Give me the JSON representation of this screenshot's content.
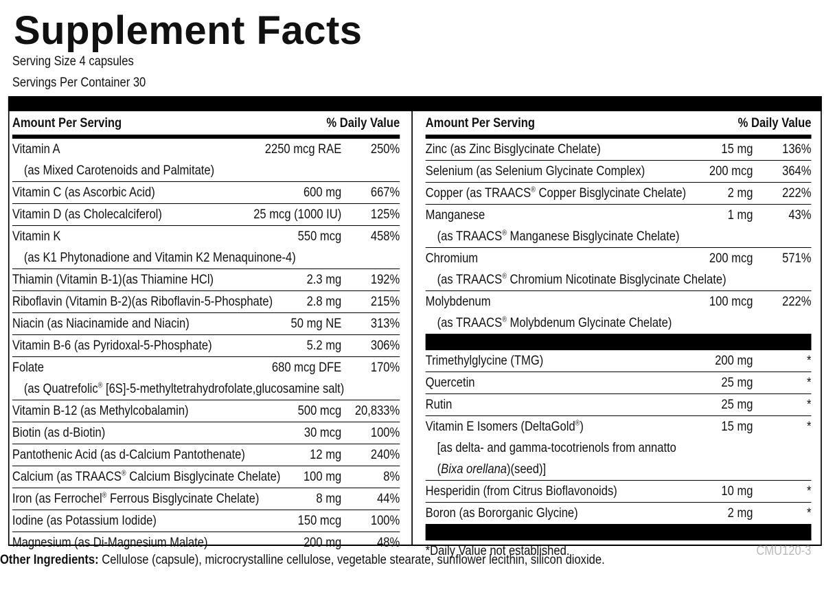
{
  "header": {
    "title": "Supplement Facts",
    "serving_size": "Serving Size 4 capsules",
    "servings_per_container": "Servings Per Container 30"
  },
  "left": {
    "columns": {
      "amount": "Amount Per Serving",
      "daily_value": "% Daily Value"
    },
    "rows": [
      {
        "name": "Vitamin A",
        "amount": "2250 mcg RAE",
        "daily_value": "250%",
        "detail": [
          "(as Mixed Carotenoids and Palmitate)"
        ]
      },
      {
        "name": "Vitamin C (as Ascorbic Acid)",
        "amount": "600 mg",
        "daily_value": "667%"
      },
      {
        "name": "Vitamin D (as Cholecalciferol)",
        "amount": "25 mcg (1000 IU)",
        "daily_value": "125%"
      },
      {
        "name": "Vitamin K",
        "amount": "550 mcg",
        "daily_value": "458%",
        "detail": [
          "(as K1 Phytonadione and Vitamin K2 Menaquinone-4)"
        ]
      },
      {
        "name": "Thiamin (Vitamin B-1)(as Thiamine HCl)",
        "amount": "2.3 mg",
        "daily_value": "192%"
      },
      {
        "name": "Riboflavin (Vitamin B-2)(as Riboflavin-5-Phosphate)",
        "amount": "2.8 mg",
        "daily_value": "215%"
      },
      {
        "name": "Niacin (as Niacinamide and Niacin)",
        "amount": "50 mg NE",
        "daily_value": "313%"
      },
      {
        "name": "Vitamin B-6 (as Pyridoxal-5-Phosphate)",
        "amount": "5.2 mg",
        "daily_value": "306%"
      },
      {
        "name": "Folate",
        "amount": "680 mcg DFE",
        "daily_value": "170%",
        "detail": [
          "(as Quatrefolic® [6S]-5-methyltetrahydrofolate,glucosamine salt)"
        ]
      },
      {
        "name": "Vitamin B-12 (as Methylcobalamin)",
        "amount": "500 mcg",
        "daily_value": "20,833%"
      },
      {
        "name": "Biotin (as d-Biotin)",
        "amount": "30 mcg",
        "daily_value": "100%"
      },
      {
        "name": "Pantothenic Acid (as d-Calcium Pantothenate)",
        "amount": "12 mg",
        "daily_value": "240%"
      },
      {
        "name": "Calcium (as TRAACS® Calcium Bisglycinate Chelate)",
        "amount": "100 mg",
        "daily_value": "8%"
      },
      {
        "name": "Iron (as Ferrochel® Ferrous Bisglycinate Chelate)",
        "amount": "8 mg",
        "daily_value": "44%"
      },
      {
        "name": "Iodine (as Potassium Iodide)",
        "amount": "150 mcg",
        "daily_value": "100%"
      },
      {
        "name": "Magnesium (as Di-Magnesium Malate)",
        "amount": "200 mg",
        "daily_value": "48%"
      }
    ]
  },
  "right": {
    "columns": {
      "amount": "Amount Per Serving",
      "daily_value": "% Daily Value"
    },
    "rows": [
      {
        "name": "Zinc (as Zinc Bisglycinate Chelate)",
        "amount": "15 mg",
        "daily_value": "136%"
      },
      {
        "name": "Selenium (as Selenium Glycinate Complex)",
        "amount": "200 mcg",
        "daily_value": "364%"
      },
      {
        "name": "Copper (as TRAACS® Copper Bisglycinate Chelate)",
        "amount": "2 mg",
        "daily_value": "222%"
      },
      {
        "name": "Manganese",
        "amount": "1 mg",
        "daily_value": "43%",
        "detail": [
          "(as TRAACS® Manganese Bisglycinate Chelate)"
        ]
      },
      {
        "name": "Chromium",
        "amount": "200 mcg",
        "daily_value": "571%",
        "detail": [
          "(as TRAACS® Chromium Nicotinate Bisglycinate Chelate)"
        ]
      },
      {
        "name": "Molybdenum",
        "amount": "100 mcg",
        "daily_value": "222%",
        "detail": [
          "(as TRAACS® Molybdenum Glycinate Chelate)"
        ]
      }
    ],
    "other_rows": [
      {
        "name": "Trimethylglycine (TMG)",
        "amount": "200 mg",
        "daily_value": "*"
      },
      {
        "name": "Quercetin",
        "amount": "25 mg",
        "daily_value": "*"
      },
      {
        "name": "Rutin",
        "amount": "25 mg",
        "daily_value": "*"
      },
      {
        "name": "Vitamin E Isomers (DeltaGold®)",
        "amount": "15 mg",
        "daily_value": "*",
        "detail": [
          "[as delta- and gamma-tocotrienols from annatto",
          [
            "(",
            {
              "text": "Bixa orellana",
              "italic": true
            },
            ")(seed)]"
          ]
        ]
      },
      {
        "name": "Hesperidin (from Citrus Bioflavonoids)",
        "amount": "10 mg",
        "daily_value": "*"
      },
      {
        "name": "Boron (as Bororganic Glycine)",
        "amount": "2 mg",
        "daily_value": "*"
      }
    ],
    "footnote": "*Daily Value not established.",
    "code": "CMU120-3"
  },
  "other_ingredients": {
    "label": "Other Ingredients:",
    "text": "Cellulose (capsule), microcrystalline cellulose, vegetable stearate, sunflower lecithin, silicon dioxide."
  }
}
